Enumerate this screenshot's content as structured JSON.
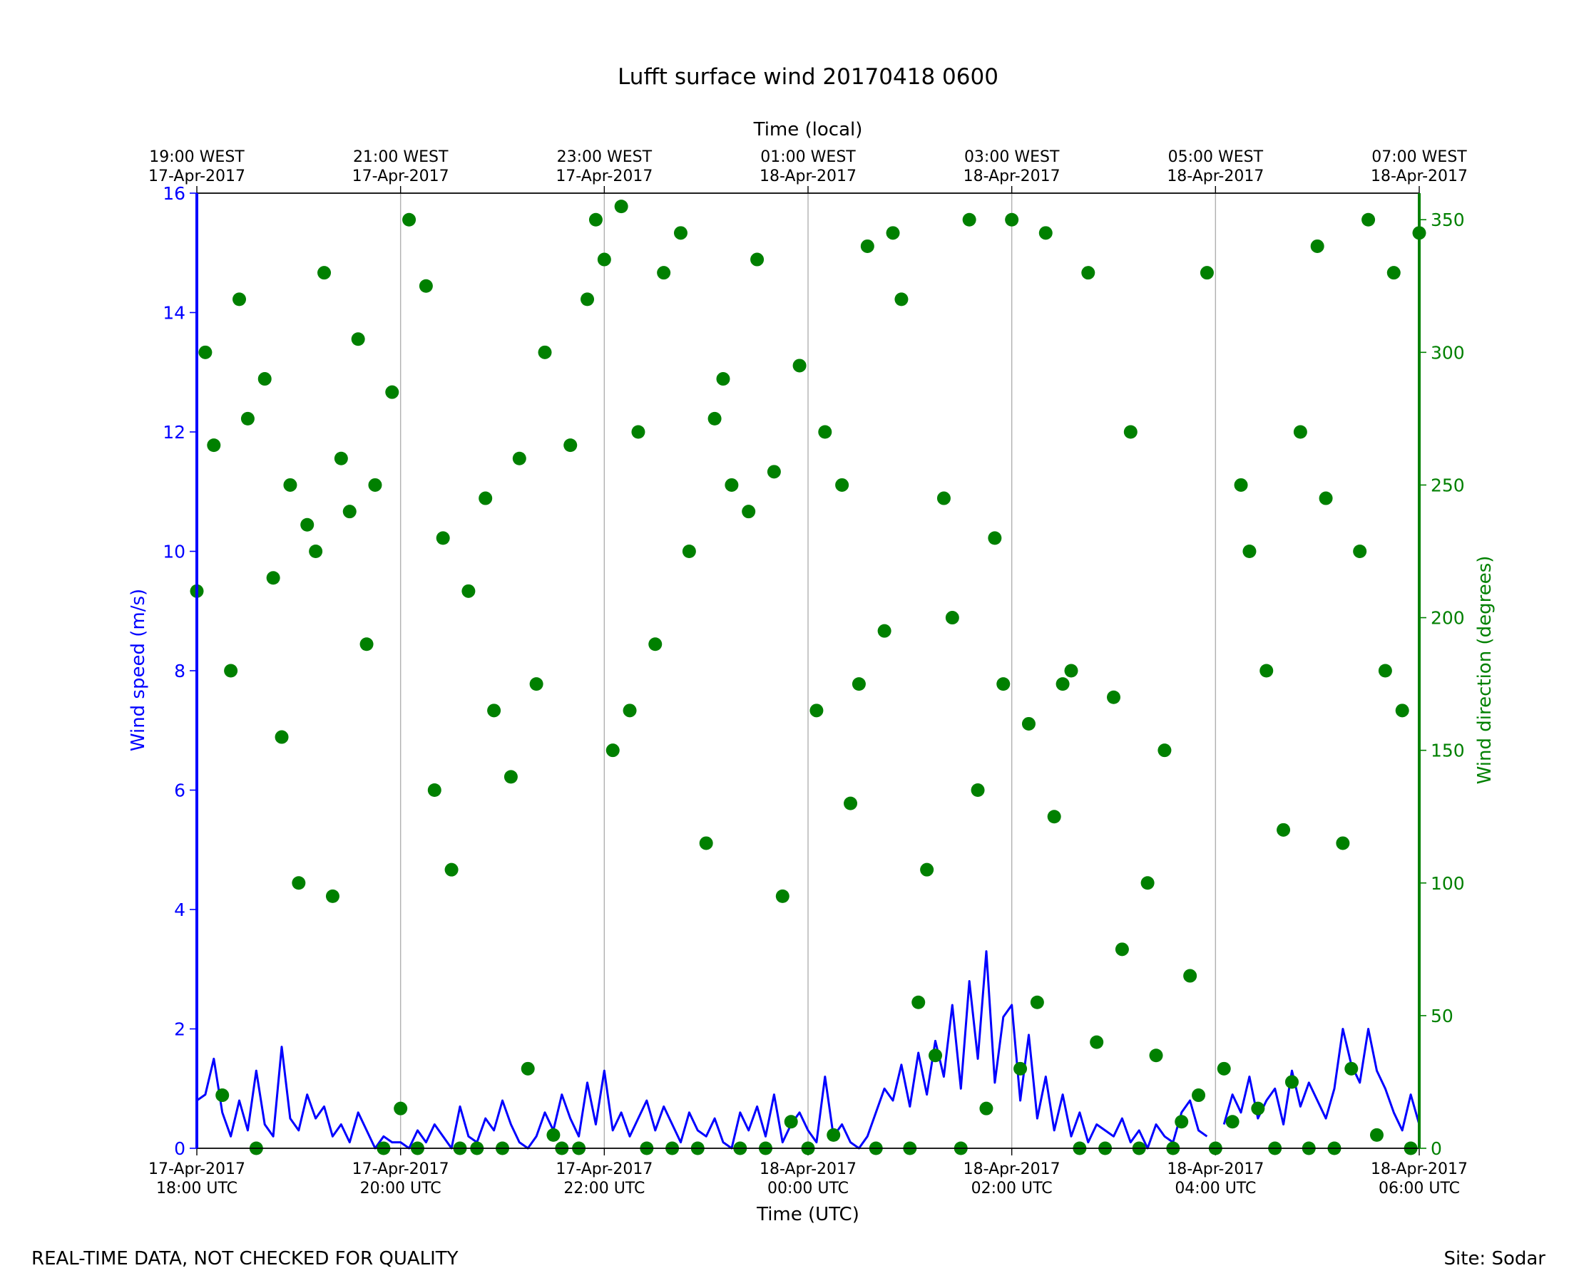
{
  "chart_data": {
    "type": "line",
    "title": "Lufft surface wind 20170418 0600",
    "xlabel": "Time (UTC)",
    "x2label": "Time (local)",
    "ylabel": "Wind speed (m/s)",
    "y2label": "Wind direction (degrees)",
    "footer_left": "REAL-TIME DATA, NOT CHECKED FOR QUALITY",
    "footer_right": "Site: Sodar",
    "grid": "x",
    "xlim": [
      "2017-04-17T18:00Z",
      "2017-04-18T06:00Z"
    ],
    "ylim": [
      0,
      16
    ],
    "yticks": [
      0,
      2,
      4,
      6,
      8,
      10,
      12,
      14,
      16
    ],
    "y2lim": [
      0,
      360
    ],
    "y2ticks": [
      0,
      50,
      100,
      150,
      200,
      250,
      300,
      350
    ],
    "xticks": [
      {
        "value": "2017-04-17T18:00Z",
        "label": [
          "17-Apr-2017",
          "18:00 UTC"
        ]
      },
      {
        "value": "2017-04-17T20:00Z",
        "label": [
          "17-Apr-2017",
          "20:00 UTC"
        ]
      },
      {
        "value": "2017-04-17T22:00Z",
        "label": [
          "17-Apr-2017",
          "22:00 UTC"
        ]
      },
      {
        "value": "2017-04-18T00:00Z",
        "label": [
          "18-Apr-2017",
          "00:00 UTC"
        ]
      },
      {
        "value": "2017-04-18T02:00Z",
        "label": [
          "18-Apr-2017",
          "02:00 UTC"
        ]
      },
      {
        "value": "2017-04-18T04:00Z",
        "label": [
          "18-Apr-2017",
          "04:00 UTC"
        ]
      },
      {
        "value": "2017-04-18T06:00Z",
        "label": [
          "18-Apr-2017",
          "06:00 UTC"
        ]
      }
    ],
    "x2ticks": [
      {
        "value": "2017-04-17T18:00Z",
        "label": [
          "19:00 WEST",
          "17-Apr-2017"
        ]
      },
      {
        "value": "2017-04-17T20:00Z",
        "label": [
          "21:00 WEST",
          "17-Apr-2017"
        ]
      },
      {
        "value": "2017-04-17T22:00Z",
        "label": [
          "23:00 WEST",
          "17-Apr-2017"
        ]
      },
      {
        "value": "2017-04-18T00:00Z",
        "label": [
          "01:00 WEST",
          "18-Apr-2017"
        ]
      },
      {
        "value": "2017-04-18T02:00Z",
        "label": [
          "03:00 WEST",
          "18-Apr-2017"
        ]
      },
      {
        "value": "2017-04-18T04:00Z",
        "label": [
          "05:00 WEST",
          "18-Apr-2017"
        ]
      },
      {
        "value": "2017-04-18T06:00Z",
        "label": [
          "07:00 WEST",
          "18-Apr-2017"
        ]
      }
    ],
    "x": [
      "2017-04-17T18:00Z",
      "2017-04-17T18:05Z",
      "2017-04-17T18:10Z",
      "2017-04-17T18:15Z",
      "2017-04-17T18:20Z",
      "2017-04-17T18:25Z",
      "2017-04-17T18:30Z",
      "2017-04-17T18:35Z",
      "2017-04-17T18:40Z",
      "2017-04-17T18:45Z",
      "2017-04-17T18:50Z",
      "2017-04-17T18:55Z",
      "2017-04-17T19:00Z",
      "2017-04-17T19:05Z",
      "2017-04-17T19:10Z",
      "2017-04-17T19:15Z",
      "2017-04-17T19:20Z",
      "2017-04-17T19:25Z",
      "2017-04-17T19:30Z",
      "2017-04-17T19:35Z",
      "2017-04-17T19:40Z",
      "2017-04-17T19:45Z",
      "2017-04-17T19:50Z",
      "2017-04-17T19:55Z",
      "2017-04-17T20:00Z",
      "2017-04-17T20:05Z",
      "2017-04-17T20:10Z",
      "2017-04-17T20:15Z",
      "2017-04-17T20:20Z",
      "2017-04-17T20:25Z",
      "2017-04-17T20:30Z",
      "2017-04-17T20:35Z",
      "2017-04-17T20:40Z",
      "2017-04-17T20:45Z",
      "2017-04-17T20:50Z",
      "2017-04-17T20:55Z",
      "2017-04-17T21:00Z",
      "2017-04-17T21:05Z",
      "2017-04-17T21:10Z",
      "2017-04-17T21:15Z",
      "2017-04-17T21:20Z",
      "2017-04-17T21:25Z",
      "2017-04-17T21:30Z",
      "2017-04-17T21:35Z",
      "2017-04-17T21:40Z",
      "2017-04-17T21:45Z",
      "2017-04-17T21:50Z",
      "2017-04-17T21:55Z",
      "2017-04-17T22:00Z",
      "2017-04-17T22:05Z",
      "2017-04-17T22:10Z",
      "2017-04-17T22:15Z",
      "2017-04-17T22:20Z",
      "2017-04-17T22:25Z",
      "2017-04-17T22:30Z",
      "2017-04-17T22:35Z",
      "2017-04-17T22:40Z",
      "2017-04-17T22:45Z",
      "2017-04-17T22:50Z",
      "2017-04-17T22:55Z",
      "2017-04-17T23:00Z",
      "2017-04-17T23:05Z",
      "2017-04-17T23:10Z",
      "2017-04-17T23:15Z",
      "2017-04-17T23:20Z",
      "2017-04-17T23:25Z",
      "2017-04-17T23:30Z",
      "2017-04-17T23:35Z",
      "2017-04-17T23:40Z",
      "2017-04-17T23:45Z",
      "2017-04-17T23:50Z",
      "2017-04-17T23:55Z",
      "2017-04-18T00:00Z",
      "2017-04-18T00:05Z",
      "2017-04-18T00:10Z",
      "2017-04-18T00:15Z",
      "2017-04-18T00:20Z",
      "2017-04-18T00:25Z",
      "2017-04-18T00:30Z",
      "2017-04-18T00:35Z",
      "2017-04-18T00:40Z",
      "2017-04-18T00:45Z",
      "2017-04-18T00:50Z",
      "2017-04-18T00:55Z",
      "2017-04-18T01:00Z",
      "2017-04-18T01:05Z",
      "2017-04-18T01:10Z",
      "2017-04-18T01:15Z",
      "2017-04-18T01:20Z",
      "2017-04-18T01:25Z",
      "2017-04-18T01:30Z",
      "2017-04-18T01:35Z",
      "2017-04-18T01:40Z",
      "2017-04-18T01:45Z",
      "2017-04-18T01:50Z",
      "2017-04-18T01:55Z",
      "2017-04-18T02:00Z",
      "2017-04-18T02:05Z",
      "2017-04-18T02:10Z",
      "2017-04-18T02:15Z",
      "2017-04-18T02:20Z",
      "2017-04-18T02:25Z",
      "2017-04-18T02:30Z",
      "2017-04-18T02:35Z",
      "2017-04-18T02:40Z",
      "2017-04-18T02:45Z",
      "2017-04-18T02:50Z",
      "2017-04-18T02:55Z",
      "2017-04-18T03:00Z",
      "2017-04-18T03:05Z",
      "2017-04-18T03:10Z",
      "2017-04-18T03:15Z",
      "2017-04-18T03:20Z",
      "2017-04-18T03:25Z",
      "2017-04-18T03:30Z",
      "2017-04-18T03:35Z",
      "2017-04-18T03:40Z",
      "2017-04-18T03:45Z",
      "2017-04-18T03:50Z",
      "2017-04-18T03:55Z",
      "2017-04-18T04:00Z",
      "2017-04-18T04:05Z",
      "2017-04-18T04:10Z",
      "2017-04-18T04:15Z",
      "2017-04-18T04:20Z",
      "2017-04-18T04:25Z",
      "2017-04-18T04:30Z",
      "2017-04-18T04:35Z",
      "2017-04-18T04:40Z",
      "2017-04-18T04:45Z",
      "2017-04-18T04:50Z",
      "2017-04-18T04:55Z",
      "2017-04-18T05:00Z",
      "2017-04-18T05:05Z",
      "2017-04-18T05:10Z",
      "2017-04-18T05:15Z",
      "2017-04-18T05:20Z",
      "2017-04-18T05:25Z",
      "2017-04-18T05:30Z",
      "2017-04-18T05:35Z",
      "2017-04-18T05:40Z",
      "2017-04-18T05:45Z",
      "2017-04-18T05:50Z",
      "2017-04-18T05:55Z",
      "2017-04-18T06:00Z"
    ],
    "series": [
      {
        "name": "Wind speed",
        "type": "line",
        "color": "#0000ff",
        "axis": "y",
        "values": [
          0.8,
          0.9,
          1.5,
          0.6,
          0.2,
          0.8,
          0.3,
          1.3,
          0.4,
          0.2,
          1.7,
          0.5,
          0.3,
          0.9,
          0.5,
          0.7,
          0.2,
          0.4,
          0.1,
          0.6,
          0.3,
          0.0,
          0.2,
          0.1,
          0.1,
          0.0,
          0.3,
          0.1,
          0.4,
          0.2,
          0.0,
          0.7,
          0.2,
          0.1,
          0.5,
          0.3,
          0.8,
          0.4,
          0.1,
          0.0,
          0.2,
          0.6,
          0.3,
          0.9,
          0.5,
          0.2,
          1.1,
          0.4,
          1.3,
          0.3,
          0.6,
          0.2,
          0.5,
          0.8,
          0.3,
          0.7,
          0.4,
          0.1,
          0.6,
          0.3,
          0.2,
          0.5,
          0.1,
          0.0,
          0.6,
          0.3,
          0.7,
          0.2,
          0.9,
          0.1,
          0.4,
          0.6,
          0.3,
          0.1,
          1.2,
          0.2,
          0.4,
          0.1,
          0.0,
          0.2,
          0.6,
          1.0,
          0.8,
          1.4,
          0.7,
          1.6,
          0.9,
          1.8,
          1.2,
          2.4,
          1.0,
          2.8,
          1.5,
          3.3,
          1.1,
          2.2,
          2.4,
          0.8,
          1.9,
          0.5,
          1.2,
          0.3,
          0.9,
          0.2,
          0.6,
          0.1,
          0.4,
          0.3,
          0.2,
          0.5,
          0.1,
          0.3,
          0.0,
          0.4,
          0.2,
          0.1,
          0.6,
          0.8,
          0.3,
          0.2,
          null,
          0.4,
          0.9,
          0.6,
          1.2,
          0.5,
          0.8,
          1.0,
          0.4,
          1.3,
          0.7,
          1.1,
          0.8,
          0.5,
          1.0,
          2.0,
          1.4,
          1.1,
          2.0,
          1.3,
          1.0,
          0.6,
          0.3,
          0.9,
          0.4
        ]
      },
      {
        "name": "Wind direction",
        "type": "scatter",
        "color": "#008000",
        "axis": "y2",
        "values": [
          210,
          300,
          265,
          20,
          180,
          320,
          275,
          0,
          290,
          215,
          155,
          250,
          100,
          235,
          225,
          330,
          95,
          260,
          240,
          305,
          190,
          250,
          0,
          285,
          15,
          350,
          0,
          325,
          135,
          230,
          105,
          0,
          210,
          0,
          245,
          165,
          0,
          140,
          260,
          30,
          175,
          300,
          5,
          0,
          265,
          0,
          320,
          350,
          335,
          150,
          355,
          165,
          270,
          0,
          190,
          330,
          0,
          345,
          225,
          0,
          115,
          275,
          290,
          250,
          0,
          240,
          335,
          0,
          255,
          95,
          10,
          295,
          0,
          165,
          270,
          5,
          250,
          130,
          175,
          340,
          0,
          195,
          345,
          320,
          0,
          55,
          105,
          35,
          245,
          200,
          0,
          350,
          135,
          15,
          230,
          175,
          350,
          30,
          160,
          55,
          345,
          125,
          175,
          180,
          0,
          330,
          40,
          0,
          170,
          75,
          270,
          0,
          100,
          35,
          150,
          0,
          10,
          65,
          20,
          330,
          0,
          30,
          10,
          250,
          225,
          15,
          180,
          0,
          120,
          25,
          270,
          0,
          340,
          245,
          0,
          115,
          30,
          225,
          350,
          5,
          180,
          330,
          165,
          0,
          345
        ]
      }
    ]
  }
}
